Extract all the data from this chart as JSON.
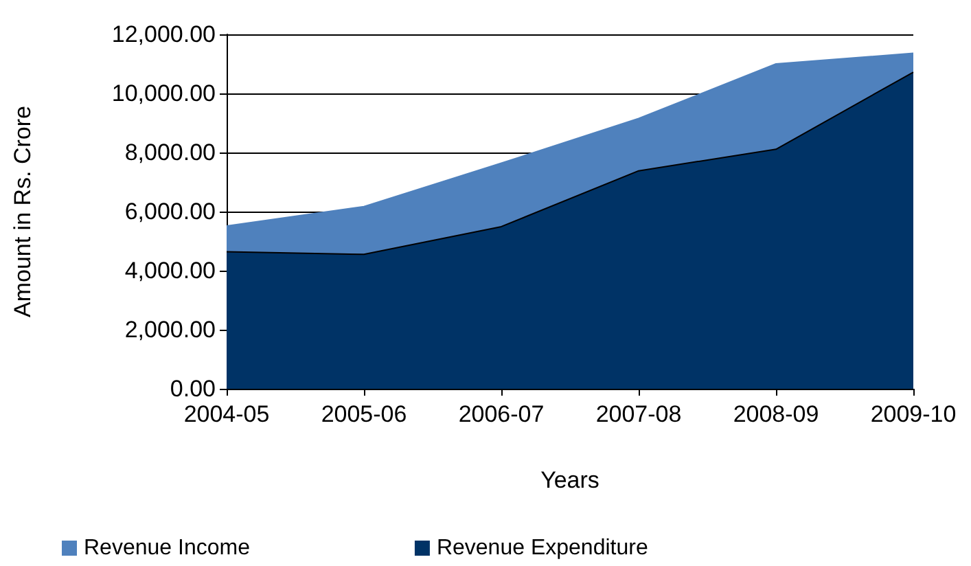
{
  "chart_data": {
    "type": "area",
    "xlabel": "Years",
    "ylabel": "Amount in Rs. Crore",
    "categories": [
      "2004-05",
      "2005-06",
      "2006-07",
      "2007-08",
      "2008-09",
      "2009-10"
    ],
    "series": [
      {
        "name": "Revenue Income",
        "color": "#4f81bd",
        "values": [
          5510,
          6170,
          7640,
          9150,
          11000,
          11360
        ]
      },
      {
        "name": "Revenue Expenditure",
        "color": "#003366",
        "values": [
          4640,
          4550,
          5490,
          7380,
          8110,
          10720
        ]
      }
    ],
    "ylim": [
      0,
      12000
    ],
    "yticks": [
      {
        "value": 0,
        "label": "0.00"
      },
      {
        "value": 2000,
        "label": "2,000.00"
      },
      {
        "value": 4000,
        "label": "4,000.00"
      },
      {
        "value": 6000,
        "label": "6,000.00"
      },
      {
        "value": 8000,
        "label": "8,000.00"
      },
      {
        "value": 10000,
        "label": "10,000.00"
      },
      {
        "value": 12000,
        "label": "12,000.00"
      }
    ],
    "grid": "y",
    "legend": "bottom"
  }
}
